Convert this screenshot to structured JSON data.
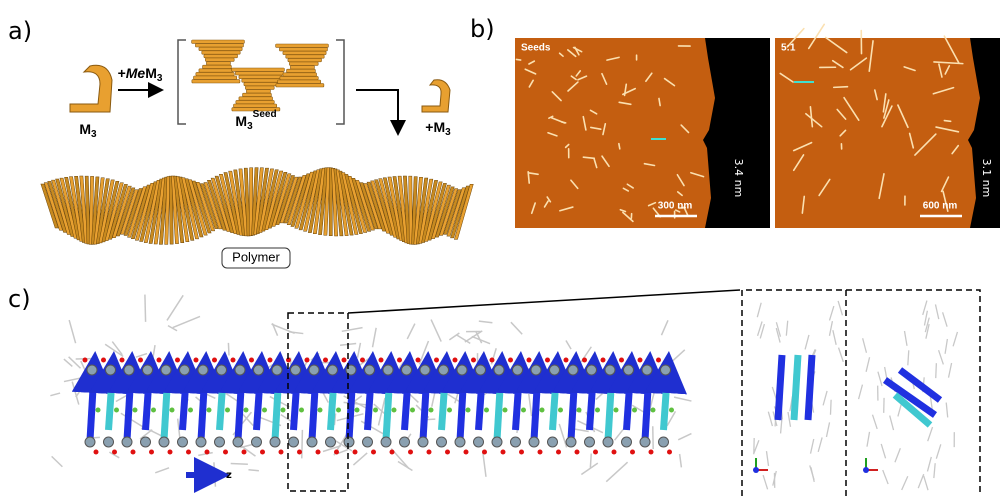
{
  "panels": {
    "a": {
      "label": "a)",
      "reagent": {
        "prefix": "+",
        "italic": "Me",
        "main": "M",
        "sub": "3"
      },
      "monomer": {
        "main": "M",
        "sub": "3"
      },
      "seed": {
        "main": "M",
        "sub": "3",
        "sup": "Seed"
      },
      "addition": {
        "main": "+M",
        "sub": "3"
      },
      "product": "Polymer"
    },
    "b": {
      "label": "b)",
      "images": [
        {
          "tag": "Seeds",
          "scale_bar": "300 nm",
          "height": "3.4 nm"
        },
        {
          "tag": "5:1",
          "scale_bar": "600 nm",
          "height": "3.1 nm"
        }
      ]
    },
    "c": {
      "label": "c)",
      "axis": "z"
    }
  }
}
